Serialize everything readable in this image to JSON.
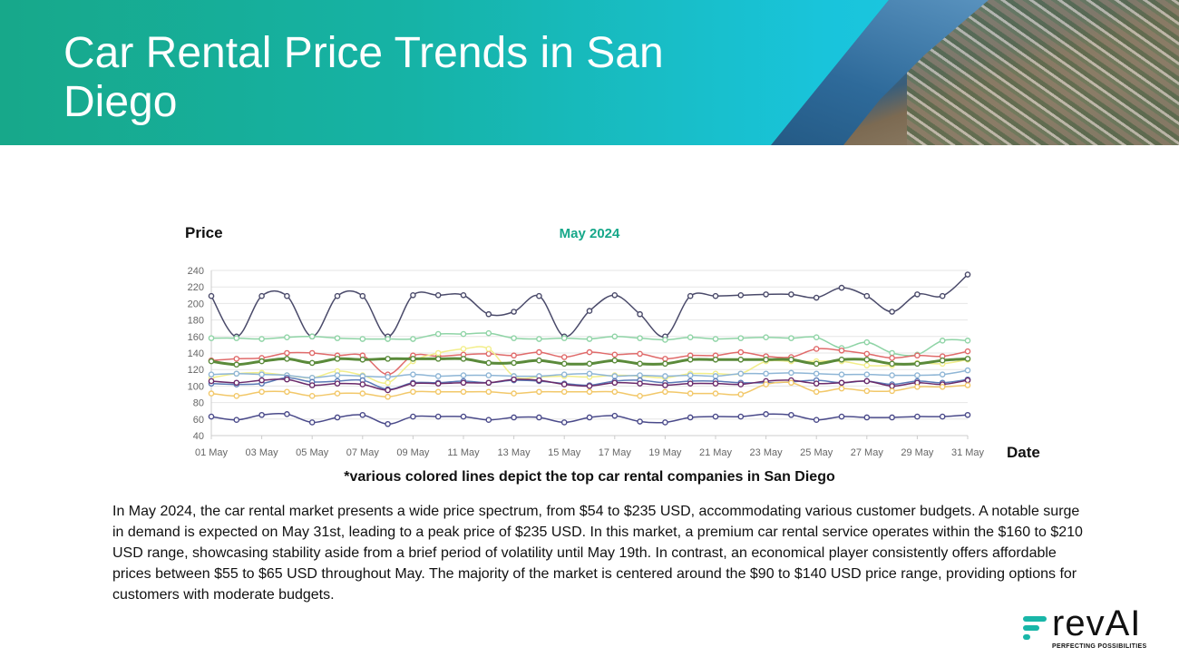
{
  "header": {
    "title": "Car Rental Price Trends in San Diego"
  },
  "chart_data": {
    "type": "line",
    "title": "May 2024",
    "ylabel": "Price",
    "xlabel": "Date",
    "ylim": [
      40,
      240
    ],
    "yticks": [
      40,
      60,
      80,
      100,
      120,
      140,
      160,
      180,
      200,
      220,
      240
    ],
    "categories": [
      "01 May",
      "02 May",
      "03 May",
      "04 May",
      "05 May",
      "06 May",
      "07 May",
      "08 May",
      "09 May",
      "10 May",
      "11 May",
      "12 May",
      "13 May",
      "14 May",
      "15 May",
      "16 May",
      "17 May",
      "18 May",
      "19 May",
      "20 May",
      "21 May",
      "22 May",
      "23 May",
      "24 May",
      "25 May",
      "26 May",
      "27 May",
      "28 May",
      "29 May",
      "30 May",
      "31 May"
    ],
    "tick_labels": [
      "01 May",
      "03 May",
      "05 May",
      "07 May",
      "09 May",
      "11 May",
      "13 May",
      "15 May",
      "17 May",
      "19 May",
      "21 May",
      "23 May",
      "25 May",
      "27 May",
      "29 May",
      "31 May"
    ],
    "series": [
      {
        "name": "Premium",
        "color": "#4a4a6a",
        "width": 1.5,
        "values": [
          209,
          160,
          209,
          209,
          160,
          209,
          209,
          160,
          210,
          210,
          210,
          187,
          190,
          209,
          160,
          191,
          210,
          187,
          160,
          209,
          209,
          210,
          211,
          211,
          207,
          219,
          209,
          190,
          211,
          209,
          235
        ]
      },
      {
        "name": "Light green",
        "color": "#8fd4a6",
        "width": 1.5,
        "values": [
          158,
          158,
          157,
          159,
          160,
          158,
          157,
          157,
          157,
          163,
          163,
          164,
          158,
          157,
          158,
          157,
          160,
          158,
          156,
          159,
          157,
          158,
          159,
          158,
          159,
          146,
          153,
          140,
          138,
          155,
          155
        ]
      },
      {
        "name": "Red",
        "color": "#e06b6b",
        "width": 1.5,
        "values": [
          131,
          133,
          134,
          140,
          140,
          137,
          137,
          114,
          137,
          136,
          138,
          139,
          137,
          141,
          135,
          141,
          138,
          139,
          133,
          137,
          137,
          141,
          136,
          135,
          145,
          143,
          139,
          134,
          137,
          136,
          142
        ]
      },
      {
        "name": "Yellow",
        "color": "#f2ee8a",
        "width": 1.5,
        "values": [
          110,
          115,
          116,
          113,
          110,
          118,
          113,
          104,
          130,
          140,
          145,
          145,
          112,
          111,
          112,
          111,
          113,
          112,
          110,
          115,
          115,
          115,
          130,
          130,
          130,
          130,
          125,
          125,
          128,
          127,
          132
        ]
      },
      {
        "name": "Dark green",
        "color": "#5a8a3a",
        "width": 3,
        "values": [
          130,
          126,
          130,
          133,
          128,
          133,
          132,
          133,
          133,
          133,
          133,
          128,
          128,
          131,
          127,
          127,
          131,
          127,
          127,
          132,
          132,
          132,
          132,
          132,
          127,
          132,
          132,
          127,
          127,
          131,
          133
        ]
      },
      {
        "name": "Light blue",
        "color": "#8fb6d6",
        "width": 1.5,
        "values": [
          114,
          115,
          114,
          113,
          110,
          113,
          112,
          111,
          114,
          112,
          113,
          113,
          112,
          112,
          114,
          115,
          112,
          113,
          112,
          113,
          112,
          115,
          115,
          116,
          115,
          114,
          114,
          113,
          113,
          114,
          119
        ]
      },
      {
        "name": "Blue",
        "color": "#5a7ab6",
        "width": 1.5,
        "values": [
          103,
          102,
          103,
          110,
          105,
          106,
          107,
          96,
          104,
          104,
          106,
          104,
          107,
          106,
          103,
          101,
          106,
          107,
          104,
          106,
          106,
          104,
          104,
          105,
          107,
          104,
          106,
          102,
          106,
          104,
          108
        ]
      },
      {
        "name": "Purple",
        "color": "#6a2a6a",
        "width": 1.5,
        "values": [
          106,
          104,
          107,
          108,
          101,
          103,
          102,
          95,
          103,
          103,
          104,
          104,
          108,
          107,
          102,
          100,
          104,
          103,
          101,
          103,
          103,
          102,
          106,
          107,
          103,
          104,
          106,
          100,
          104,
          102,
          107
        ]
      },
      {
        "name": "Gold",
        "color": "#f2c86a",
        "width": 1.5,
        "values": [
          91,
          88,
          93,
          93,
          88,
          91,
          91,
          87,
          93,
          93,
          93,
          93,
          91,
          93,
          93,
          93,
          93,
          88,
          93,
          91,
          91,
          90,
          102,
          104,
          93,
          97,
          94,
          94,
          99,
          99,
          101
        ]
      },
      {
        "name": "Economy",
        "color": "#4a4a8a",
        "width": 1.5,
        "values": [
          63,
          59,
          65,
          66,
          56,
          62,
          65,
          54,
          63,
          63,
          63,
          59,
          62,
          62,
          56,
          62,
          64,
          57,
          56,
          62,
          63,
          63,
          66,
          65,
          59,
          63,
          62,
          62,
          63,
          63,
          65
        ]
      }
    ]
  },
  "caption": "*various colored lines depict the top car rental companies in San Diego",
  "body": "In May 2024, the car rental market presents a wide price spectrum, from $54 to $235 USD, accommodating various customer budgets. A notable surge in demand is expected on May 31st, leading to a peak price of $235 USD. In this market, a premium car rental service operates within the $160 to $210 USD range, showcasing stability aside from a brief period of volatility until May 19th. In contrast, an economical player consistently offers affordable prices between $55 to $65 USD throughout May. The majority of the market is centered around the $90 to $140 USD price range, providing options for customers with moderate budgets.",
  "logo": {
    "name": "revAI",
    "tagline": "PERFECTING POSSIBILITIES"
  },
  "colors": {
    "accent": "#17a88a",
    "title_green": "#17a88a"
  }
}
